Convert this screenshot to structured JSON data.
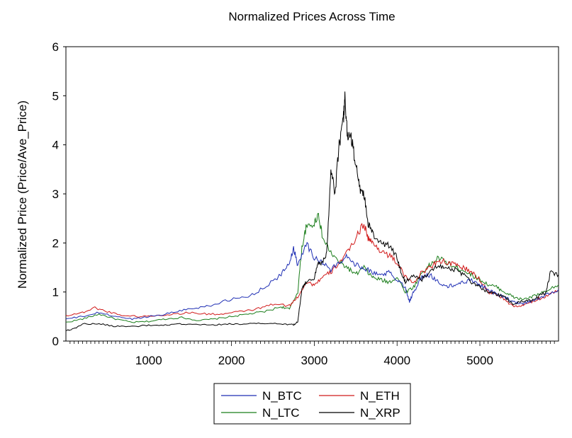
{
  "chart_data": {
    "type": "line",
    "title": "Normalized Prices Across Time",
    "xlabel": "",
    "ylabel": "Normalized Price (Price/Ave_Price)",
    "xlim": [
      0,
      5950
    ],
    "ylim": [
      0,
      6
    ],
    "x_ticks": [
      1000,
      2000,
      3000,
      4000,
      5000
    ],
    "y_ticks": [
      0,
      1,
      2,
      3,
      4,
      5,
      6
    ],
    "grid": false,
    "legend_position": "bottom-center",
    "series": [
      {
        "name": "N_BTC",
        "color": "#1f2fb4",
        "points": [
          [
            0,
            0.45
          ],
          [
            200,
            0.5
          ],
          [
            400,
            0.58
          ],
          [
            600,
            0.5
          ],
          [
            800,
            0.45
          ],
          [
            1000,
            0.5
          ],
          [
            1200,
            0.55
          ],
          [
            1400,
            0.63
          ],
          [
            1600,
            0.68
          ],
          [
            1800,
            0.75
          ],
          [
            2000,
            0.85
          ],
          [
            2200,
            0.9
          ],
          [
            2400,
            1.1
          ],
          [
            2600,
            1.35
          ],
          [
            2700,
            1.6
          ],
          [
            2750,
            1.9
          ],
          [
            2800,
            1.55
          ],
          [
            2900,
            2.0
          ],
          [
            3000,
            1.7
          ],
          [
            3100,
            1.6
          ],
          [
            3200,
            1.45
          ],
          [
            3300,
            1.6
          ],
          [
            3400,
            1.75
          ],
          [
            3500,
            1.55
          ],
          [
            3600,
            1.5
          ],
          [
            3700,
            1.4
          ],
          [
            3800,
            1.35
          ],
          [
            3900,
            1.4
          ],
          [
            4000,
            1.25
          ],
          [
            4100,
            1.1
          ],
          [
            4150,
            0.8
          ],
          [
            4200,
            1.0
          ],
          [
            4300,
            1.3
          ],
          [
            4400,
            1.35
          ],
          [
            4500,
            1.2
          ],
          [
            4600,
            1.1
          ],
          [
            4700,
            1.15
          ],
          [
            4800,
            1.2
          ],
          [
            4900,
            1.25
          ],
          [
            5000,
            1.15
          ],
          [
            5100,
            1.05
          ],
          [
            5200,
            0.95
          ],
          [
            5300,
            0.9
          ],
          [
            5400,
            0.8
          ],
          [
            5500,
            0.75
          ],
          [
            5600,
            0.8
          ],
          [
            5700,
            0.85
          ],
          [
            5800,
            0.95
          ],
          [
            5950,
            1.05
          ]
        ]
      },
      {
        "name": "N_ETH",
        "color": "#d11a1a",
        "points": [
          [
            0,
            0.52
          ],
          [
            200,
            0.58
          ],
          [
            350,
            0.68
          ],
          [
            500,
            0.6
          ],
          [
            700,
            0.52
          ],
          [
            900,
            0.5
          ],
          [
            1100,
            0.52
          ],
          [
            1300,
            0.55
          ],
          [
            1500,
            0.58
          ],
          [
            1700,
            0.55
          ],
          [
            1900,
            0.55
          ],
          [
            2100,
            0.6
          ],
          [
            2300,
            0.65
          ],
          [
            2500,
            0.75
          ],
          [
            2700,
            0.72
          ],
          [
            2800,
            0.9
          ],
          [
            2900,
            1.2
          ],
          [
            3000,
            1.15
          ],
          [
            3100,
            1.3
          ],
          [
            3200,
            1.4
          ],
          [
            3300,
            1.6
          ],
          [
            3400,
            1.8
          ],
          [
            3500,
            2.1
          ],
          [
            3600,
            2.4
          ],
          [
            3650,
            2.1
          ],
          [
            3700,
            2.0
          ],
          [
            3800,
            1.85
          ],
          [
            3900,
            1.75
          ],
          [
            4000,
            1.6
          ],
          [
            4100,
            1.3
          ],
          [
            4200,
            1.2
          ],
          [
            4300,
            1.4
          ],
          [
            4400,
            1.5
          ],
          [
            4500,
            1.65
          ],
          [
            4600,
            1.6
          ],
          [
            4700,
            1.55
          ],
          [
            4800,
            1.5
          ],
          [
            4900,
            1.4
          ],
          [
            5000,
            1.25
          ],
          [
            5100,
            1.0
          ],
          [
            5200,
            0.95
          ],
          [
            5300,
            0.85
          ],
          [
            5400,
            0.7
          ],
          [
            5500,
            0.72
          ],
          [
            5600,
            0.78
          ],
          [
            5700,
            0.85
          ],
          [
            5800,
            0.92
          ],
          [
            5950,
            1.05
          ]
        ]
      },
      {
        "name": "N_LTC",
        "color": "#1a7d1a",
        "points": [
          [
            0,
            0.38
          ],
          [
            200,
            0.45
          ],
          [
            400,
            0.55
          ],
          [
            600,
            0.45
          ],
          [
            800,
            0.38
          ],
          [
            1000,
            0.4
          ],
          [
            1200,
            0.45
          ],
          [
            1400,
            0.48
          ],
          [
            1600,
            0.42
          ],
          [
            1800,
            0.45
          ],
          [
            2000,
            0.5
          ],
          [
            2200,
            0.55
          ],
          [
            2400,
            0.6
          ],
          [
            2600,
            0.7
          ],
          [
            2700,
            0.65
          ],
          [
            2800,
            1.0
          ],
          [
            2850,
            1.9
          ],
          [
            2900,
            2.3
          ],
          [
            3000,
            2.4
          ],
          [
            3050,
            2.6
          ],
          [
            3100,
            2.1
          ],
          [
            3200,
            1.8
          ],
          [
            3300,
            1.6
          ],
          [
            3400,
            1.5
          ],
          [
            3500,
            1.35
          ],
          [
            3600,
            1.5
          ],
          [
            3700,
            1.3
          ],
          [
            3800,
            1.25
          ],
          [
            3900,
            1.2
          ],
          [
            4000,
            1.3
          ],
          [
            4100,
            1.0
          ],
          [
            4200,
            1.1
          ],
          [
            4300,
            1.4
          ],
          [
            4400,
            1.55
          ],
          [
            4500,
            1.7
          ],
          [
            4600,
            1.6
          ],
          [
            4700,
            1.5
          ],
          [
            4800,
            1.45
          ],
          [
            4900,
            1.35
          ],
          [
            5000,
            1.25
          ],
          [
            5100,
            1.15
          ],
          [
            5200,
            1.1
          ],
          [
            5300,
            1.0
          ],
          [
            5400,
            0.9
          ],
          [
            5500,
            0.85
          ],
          [
            5600,
            0.88
          ],
          [
            5700,
            0.95
          ],
          [
            5800,
            1.0
          ],
          [
            5950,
            1.15
          ]
        ]
      },
      {
        "name": "N_XRP",
        "color": "#000000",
        "points": [
          [
            0,
            0.22
          ],
          [
            100,
            0.25
          ],
          [
            200,
            0.35
          ],
          [
            400,
            0.35
          ],
          [
            600,
            0.3
          ],
          [
            800,
            0.3
          ],
          [
            1000,
            0.32
          ],
          [
            1200,
            0.32
          ],
          [
            1400,
            0.35
          ],
          [
            1600,
            0.33
          ],
          [
            1800,
            0.33
          ],
          [
            2000,
            0.35
          ],
          [
            2200,
            0.35
          ],
          [
            2400,
            0.36
          ],
          [
            2600,
            0.35
          ],
          [
            2750,
            0.33
          ],
          [
            2800,
            0.4
          ],
          [
            2850,
            1.05
          ],
          [
            2900,
            1.2
          ],
          [
            3000,
            1.3
          ],
          [
            3050,
            1.6
          ],
          [
            3100,
            1.6
          ],
          [
            3150,
            1.8
          ],
          [
            3200,
            3.5
          ],
          [
            3250,
            3.0
          ],
          [
            3300,
            4.0
          ],
          [
            3350,
            4.5
          ],
          [
            3370,
            4.95
          ],
          [
            3400,
            4.2
          ],
          [
            3450,
            4.1
          ],
          [
            3500,
            3.6
          ],
          [
            3550,
            3.1
          ],
          [
            3600,
            3.0
          ],
          [
            3650,
            2.4
          ],
          [
            3700,
            2.2
          ],
          [
            3800,
            2.0
          ],
          [
            3900,
            1.95
          ],
          [
            4000,
            1.7
          ],
          [
            4050,
            1.4
          ],
          [
            4100,
            1.2
          ],
          [
            4200,
            1.35
          ],
          [
            4300,
            1.25
          ],
          [
            4400,
            1.45
          ],
          [
            4500,
            1.55
          ],
          [
            4600,
            1.5
          ],
          [
            4700,
            1.45
          ],
          [
            4800,
            1.35
          ],
          [
            4900,
            1.2
          ],
          [
            5000,
            1.1
          ],
          [
            5100,
            1.0
          ],
          [
            5200,
            0.95
          ],
          [
            5300,
            0.9
          ],
          [
            5400,
            0.75
          ],
          [
            5500,
            0.8
          ],
          [
            5600,
            0.82
          ],
          [
            5700,
            0.9
          ],
          [
            5800,
            1.0
          ],
          [
            5850,
            1.4
          ],
          [
            5950,
            1.35
          ]
        ]
      }
    ]
  }
}
